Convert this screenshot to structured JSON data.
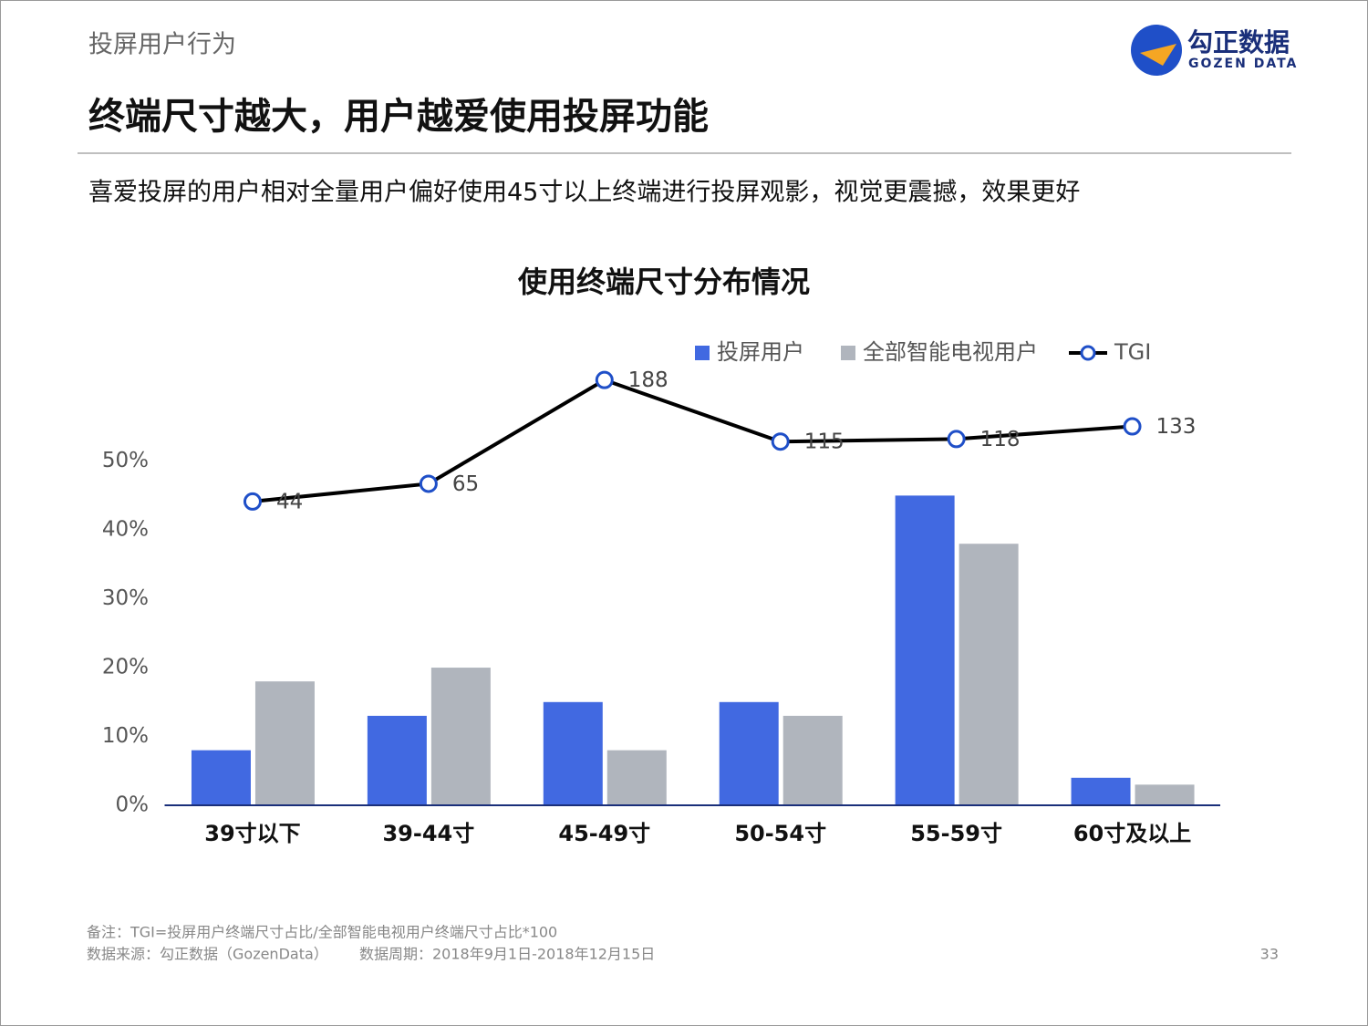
{
  "header": "投屏用户行为",
  "logo": {
    "name": "勾正数据",
    "name_en": "GOZEN DATA"
  },
  "headline": "终端尺寸越大，用户越爱使用投屏功能",
  "subtitle": "喜爱投屏的用户相对全量用户偏好使用45寸以上终端进行投屏观影，视觉更震撼，效果更好",
  "chart_data": {
    "type": "bar_line",
    "title": "使用终端尺寸分布情况",
    "categories": [
      "39寸以下",
      "39-44寸",
      "45-49寸",
      "50-54寸",
      "55-59寸",
      "60寸及以上"
    ],
    "series": [
      {
        "name": "投屏用户",
        "color": "#4169e1",
        "values": [
          8,
          13,
          15,
          15,
          45,
          4
        ]
      },
      {
        "name": "全部智能电视用户",
        "color": "#b0b5bd",
        "values": [
          18,
          20,
          8,
          13,
          38,
          3
        ]
      },
      {
        "name": "TGI",
        "color": "#000000",
        "marker_color": "#1f4fc8",
        "axis": "y2",
        "values": [
          44,
          65,
          188,
          115,
          118,
          133
        ]
      }
    ],
    "ylim": [
      0,
      64
    ],
    "yticks": [
      {
        "value": 0,
        "label": "0%"
      },
      {
        "value": 10,
        "label": "10%"
      },
      {
        "value": 20,
        "label": "20%"
      },
      {
        "value": 30,
        "label": "30%"
      },
      {
        "value": 40,
        "label": "40%"
      },
      {
        "value": 50,
        "label": "50%"
      }
    ],
    "y2lim": [
      -316,
      206
    ],
    "grid": false,
    "legend": "top"
  },
  "footnotes": {
    "note": "备注：TGI=投屏用户终端尺寸占比/全部智能电视用户终端尺寸占比*100",
    "source": "数据来源：勾正数据（GozenData）",
    "period": "数据周期：2018年9月1日-2018年12月15日",
    "page": "33"
  }
}
